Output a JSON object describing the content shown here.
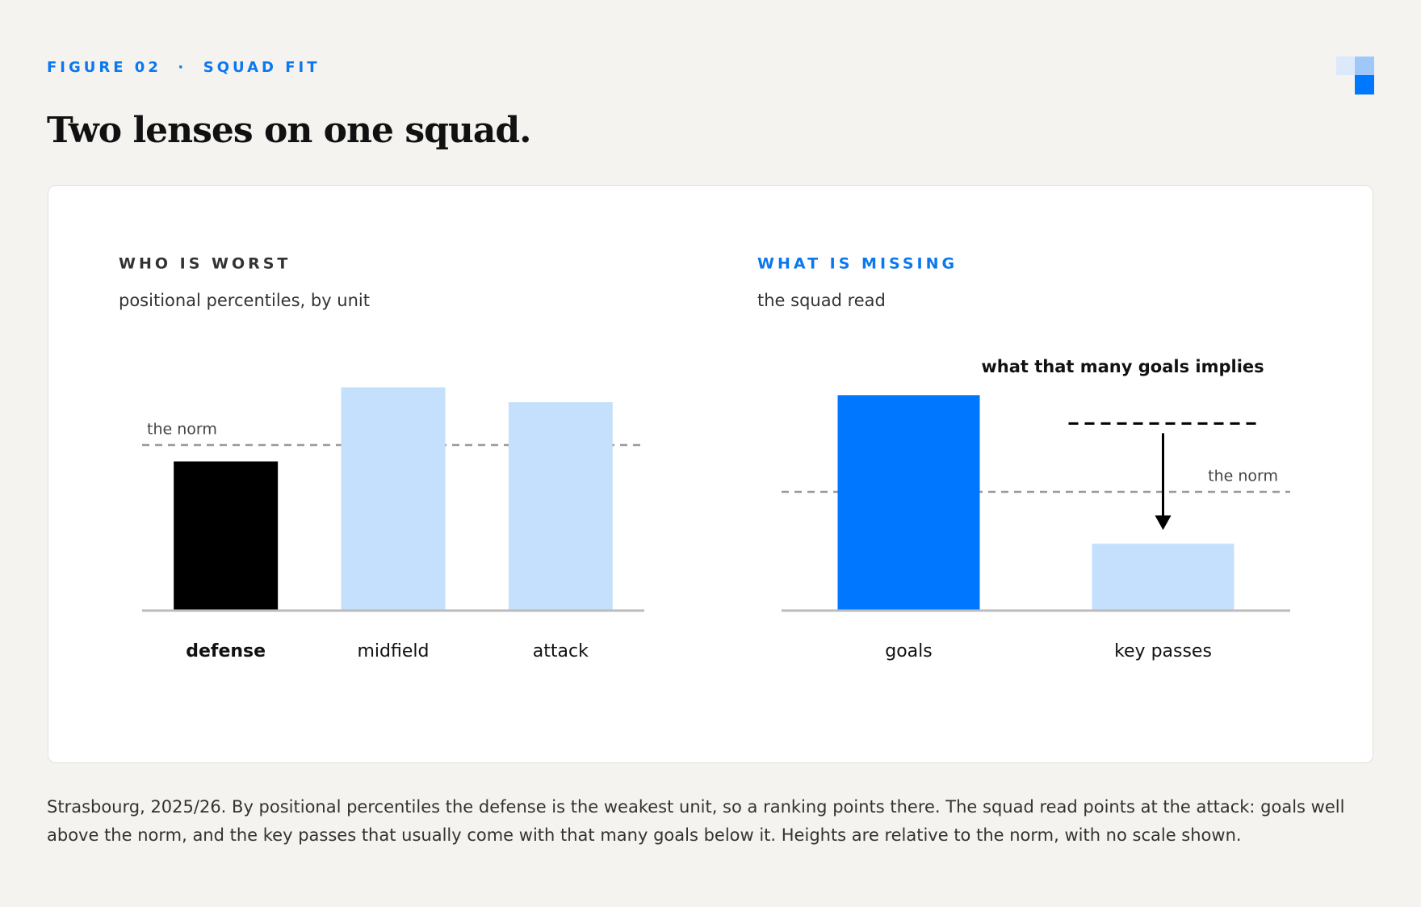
{
  "header": {
    "eyebrow": "FIGURE 02  ·  SQUAD FIT",
    "title": "Two lenses on one squad."
  },
  "chart_data": [
    {
      "type": "bar",
      "title": "WHO IS WORST",
      "title_color": "#333333",
      "subtitle": "positional percentiles, by unit",
      "categories": [
        "defense",
        "midfield",
        "attack"
      ],
      "values": [
        90,
        135,
        126
      ],
      "colors": [
        "#000000",
        "#c5e0fc",
        "#c5e0fc"
      ],
      "label_weights": [
        "bold",
        "normal",
        "normal"
      ],
      "norm": {
        "label": "the norm",
        "value": 100
      },
      "norm_label_side": "left",
      "ylim": [
        0,
        150
      ]
    },
    {
      "type": "bar",
      "title": "WHAT IS MISSING",
      "title_color": "#0a78f0",
      "subtitle": "the squad read",
      "categories": [
        "goals",
        "key passes"
      ],
      "values": [
        182,
        56
      ],
      "colors": [
        "#0077ff",
        "#c5e0fc"
      ],
      "label_weights": [
        "normal",
        "normal"
      ],
      "norm": {
        "label": "the norm",
        "value": 100
      },
      "norm_label_side": "right",
      "ylim": [
        0,
        200
      ],
      "implied": {
        "label": "what that many goals implies",
        "value": 158,
        "category_index": 1
      }
    }
  ],
  "caption": "Strasbourg, 2025/26. By positional percentiles the defense is the weakest unit, so a ranking points there. The squad read points at the attack: goals well above the norm, and the key passes that usually come with that many goals below it. Heights are relative to the norm, with no scale shown."
}
